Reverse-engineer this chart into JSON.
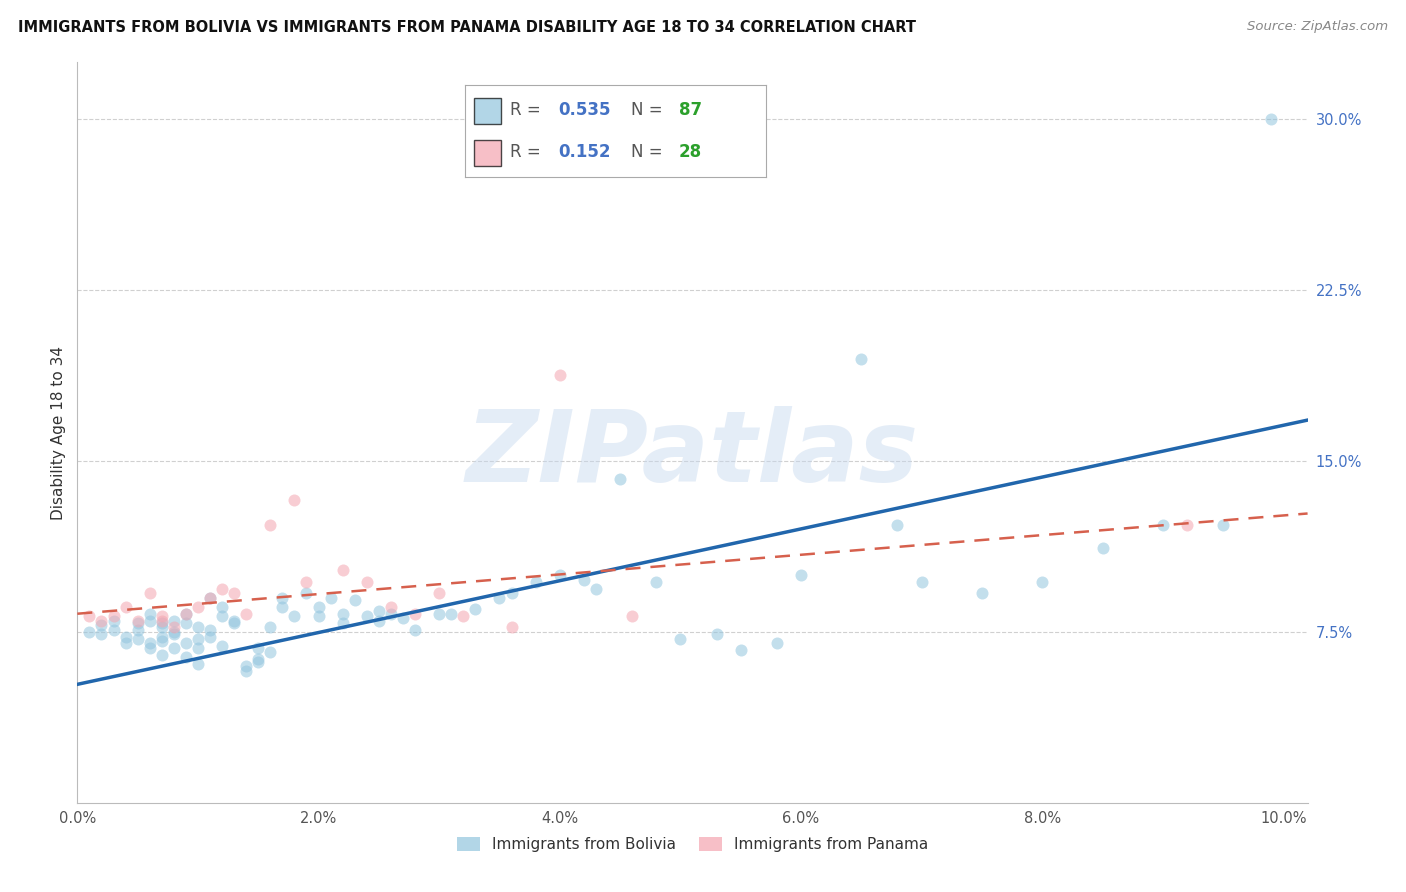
{
  "title": "IMMIGRANTS FROM BOLIVIA VS IMMIGRANTS FROM PANAMA DISABILITY AGE 18 TO 34 CORRELATION CHART",
  "source": "Source: ZipAtlas.com",
  "ylabel": "Disability Age 18 to 34",
  "xlim": [
    0.0,
    0.102
  ],
  "ylim": [
    0.0,
    0.325
  ],
  "xticks": [
    0.0,
    0.02,
    0.04,
    0.06,
    0.08,
    0.1
  ],
  "xticklabels": [
    "0.0%",
    "2.0%",
    "4.0%",
    "6.0%",
    "8.0%",
    "10.0%"
  ],
  "yticks_right": [
    0.075,
    0.15,
    0.225,
    0.3
  ],
  "yticklabels_right": [
    "7.5%",
    "15.0%",
    "22.5%",
    "30.0%"
  ],
  "bolivia_color": "#92c5de",
  "panama_color": "#f4a5b0",
  "bolivia_trend_color": "#2166ac",
  "panama_trend_color": "#d6604d",
  "legend_bolivia_R": "0.535",
  "legend_bolivia_N": "87",
  "legend_panama_R": "0.152",
  "legend_panama_N": "28",
  "R_color": "#4472c4",
  "N_color": "#2ca02c",
  "watermark": "ZIPatlas",
  "bolivia_x": [
    0.001,
    0.002,
    0.002,
    0.003,
    0.003,
    0.004,
    0.004,
    0.005,
    0.005,
    0.005,
    0.006,
    0.006,
    0.006,
    0.006,
    0.007,
    0.007,
    0.007,
    0.007,
    0.007,
    0.008,
    0.008,
    0.008,
    0.008,
    0.009,
    0.009,
    0.009,
    0.009,
    0.01,
    0.01,
    0.01,
    0.01,
    0.011,
    0.011,
    0.011,
    0.012,
    0.012,
    0.012,
    0.013,
    0.013,
    0.014,
    0.014,
    0.015,
    0.015,
    0.015,
    0.016,
    0.016,
    0.017,
    0.017,
    0.018,
    0.019,
    0.02,
    0.02,
    0.021,
    0.022,
    0.022,
    0.023,
    0.024,
    0.025,
    0.025,
    0.026,
    0.027,
    0.028,
    0.03,
    0.031,
    0.033,
    0.035,
    0.036,
    0.038,
    0.04,
    0.042,
    0.043,
    0.045,
    0.048,
    0.05,
    0.053,
    0.055,
    0.058,
    0.06,
    0.065,
    0.068,
    0.07,
    0.075,
    0.08,
    0.085,
    0.09,
    0.095,
    0.099
  ],
  "bolivia_y": [
    0.075,
    0.078,
    0.074,
    0.076,
    0.08,
    0.073,
    0.07,
    0.079,
    0.076,
    0.072,
    0.083,
    0.07,
    0.068,
    0.08,
    0.073,
    0.077,
    0.065,
    0.079,
    0.071,
    0.075,
    0.08,
    0.068,
    0.074,
    0.083,
    0.07,
    0.079,
    0.064,
    0.072,
    0.061,
    0.077,
    0.068,
    0.09,
    0.076,
    0.073,
    0.086,
    0.082,
    0.069,
    0.079,
    0.08,
    0.06,
    0.058,
    0.062,
    0.068,
    0.063,
    0.077,
    0.066,
    0.086,
    0.09,
    0.082,
    0.092,
    0.082,
    0.086,
    0.09,
    0.083,
    0.079,
    0.089,
    0.082,
    0.084,
    0.08,
    0.083,
    0.081,
    0.076,
    0.083,
    0.083,
    0.085,
    0.09,
    0.092,
    0.097,
    0.1,
    0.098,
    0.094,
    0.142,
    0.097,
    0.072,
    0.074,
    0.067,
    0.07,
    0.1,
    0.195,
    0.122,
    0.097,
    0.092,
    0.097,
    0.112,
    0.122,
    0.122,
    0.3
  ],
  "panama_x": [
    0.001,
    0.002,
    0.003,
    0.004,
    0.005,
    0.006,
    0.007,
    0.007,
    0.008,
    0.009,
    0.01,
    0.011,
    0.012,
    0.013,
    0.014,
    0.016,
    0.018,
    0.019,
    0.022,
    0.024,
    0.026,
    0.028,
    0.03,
    0.032,
    0.036,
    0.04,
    0.046,
    0.092
  ],
  "panama_y": [
    0.082,
    0.08,
    0.082,
    0.086,
    0.08,
    0.092,
    0.082,
    0.08,
    0.077,
    0.083,
    0.086,
    0.09,
    0.094,
    0.092,
    0.083,
    0.122,
    0.133,
    0.097,
    0.102,
    0.097,
    0.086,
    0.083,
    0.092,
    0.082,
    0.077,
    0.188,
    0.082,
    0.122
  ],
  "bolivia_trend_x": [
    0.0,
    0.102
  ],
  "bolivia_trend_y": [
    0.052,
    0.168
  ],
  "panama_trend_x": [
    0.0,
    0.102
  ],
  "panama_trend_y": [
    0.083,
    0.127
  ],
  "background_color": "#ffffff",
  "grid_color": "#d0d0d0",
  "axis_tick_color": "#555555",
  "right_tick_color": "#4472c4"
}
